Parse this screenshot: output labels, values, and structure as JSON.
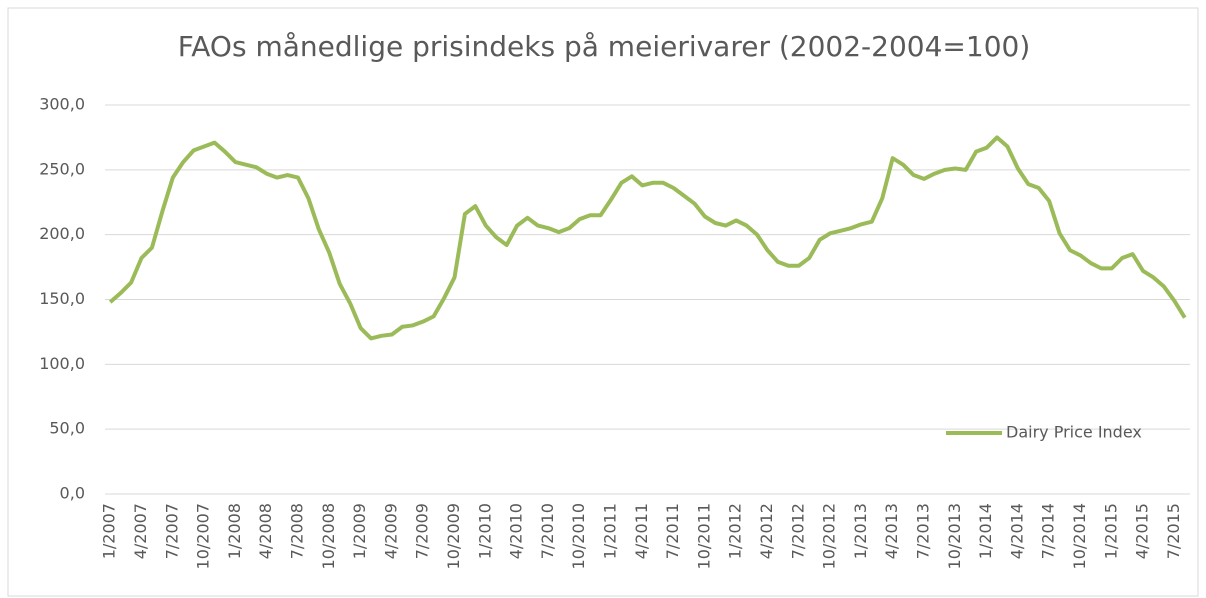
{
  "chart_data": {
    "type": "line",
    "title": "FAOs månedlige prisindeks på meierivarer (2002-2004=100)",
    "categories": [
      "1/2007",
      null,
      null,
      "4/2007",
      null,
      null,
      "7/2007",
      null,
      null,
      "10/2007",
      null,
      null,
      "1/2008",
      null,
      null,
      "4/2008",
      null,
      null,
      "7/2008",
      null,
      null,
      "10/2008",
      null,
      null,
      "1/2009",
      null,
      null,
      "4/2009",
      null,
      null,
      "7/2009",
      null,
      null,
      "10/2009",
      null,
      null,
      "1/2010",
      null,
      null,
      "4/2010",
      null,
      null,
      "7/2010",
      null,
      null,
      "10/2010",
      null,
      null,
      "1/2011",
      null,
      null,
      "4/2011",
      null,
      null,
      "7/2011",
      null,
      null,
      "10/2011",
      null,
      null,
      "1/2012",
      null,
      null,
      "4/2012",
      null,
      null,
      "7/2012",
      null,
      null,
      "10/2012",
      null,
      null,
      "1/2013",
      null,
      null,
      "4/2013",
      null,
      null,
      "7/2013",
      null,
      null,
      "10/2013",
      null,
      null,
      "1/2014",
      null,
      null,
      "4/2014",
      null,
      null,
      "7/2014",
      null,
      null,
      "10/2014",
      null,
      null,
      "1/2015",
      null,
      null,
      "4/2015",
      null,
      null,
      "7/2015",
      null
    ],
    "series": [
      {
        "name": "Dairy Price Index",
        "color": "#9bbb59",
        "values": [
          148,
          155,
          163,
          182,
          190,
          218,
          244,
          256,
          265,
          268,
          271,
          264,
          256,
          254,
          252,
          247,
          244,
          246,
          244,
          228,
          204,
          186,
          162,
          147,
          128,
          120,
          122,
          123,
          129,
          130,
          133,
          137,
          151,
          167,
          216,
          222,
          207,
          198,
          192,
          207,
          213,
          207,
          205,
          202,
          205,
          212,
          215,
          215,
          227,
          240,
          245,
          238,
          240,
          240,
          236,
          230,
          224,
          214,
          209,
          207,
          211,
          207,
          200,
          188,
          179,
          176,
          176,
          182,
          196,
          201,
          203,
          205,
          208,
          210,
          228,
          259,
          254,
          246,
          243,
          247,
          250,
          251,
          250,
          264,
          267,
          275,
          268,
          251,
          239,
          236,
          226,
          201,
          188,
          184,
          178,
          174,
          174,
          182,
          185,
          172,
          167,
          160,
          149,
          136
        ]
      }
    ],
    "ylim": [
      0,
      300
    ],
    "yticks": [
      {
        "value": 0,
        "label": "0,0"
      },
      {
        "value": 50,
        "label": "50,0"
      },
      {
        "value": 100,
        "label": "100,0"
      },
      {
        "value": 150,
        "label": "150,0"
      },
      {
        "value": 200,
        "label": "200,0"
      },
      {
        "value": 250,
        "label": "250,0"
      },
      {
        "value": 300,
        "label": "300,0"
      }
    ],
    "grid": true,
    "legend": "right"
  }
}
